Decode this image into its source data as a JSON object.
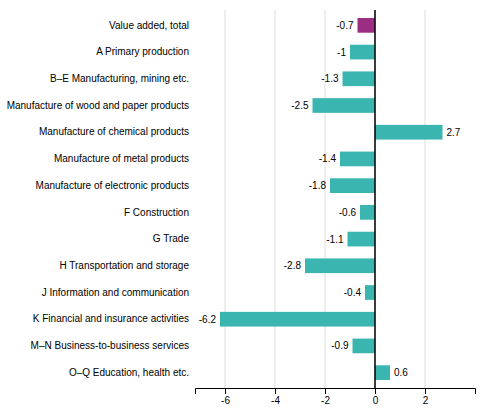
{
  "chart_data": {
    "type": "bar",
    "orientation": "horizontal",
    "categories": [
      "Value added, total",
      "A Primary production",
      "B–E Manufacturing, mining etc.",
      "Manufacture of wood and paper products",
      "Manufacture of chemical products",
      "Manufacture of metal products",
      "Manufacture of electronic products",
      "F Construction",
      "G Trade",
      "H Transportation and storage",
      "J Information and communication",
      "K Financial and insurance activities",
      "M–N Business-to-business services",
      "O–Q Education, health etc."
    ],
    "values": [
      -0.7,
      -1.0,
      -1.3,
      -2.5,
      2.7,
      -1.4,
      -1.8,
      -0.6,
      -1.1,
      -2.8,
      -0.4,
      -6.2,
      -0.9,
      0.6
    ],
    "colors": [
      "#9b2d82",
      "#3ab5b0",
      "#3ab5b0",
      "#3ab5b0",
      "#3ab5b0",
      "#3ab5b0",
      "#3ab5b0",
      "#3ab5b0",
      "#3ab5b0",
      "#3ab5b0",
      "#3ab5b0",
      "#3ab5b0",
      "#3ab5b0",
      "#3ab5b0"
    ],
    "xlim": [
      -7.2,
      4.0
    ],
    "xticks": [
      -6,
      -4,
      -2,
      0,
      2
    ],
    "grid": true,
    "data_labels": true
  }
}
